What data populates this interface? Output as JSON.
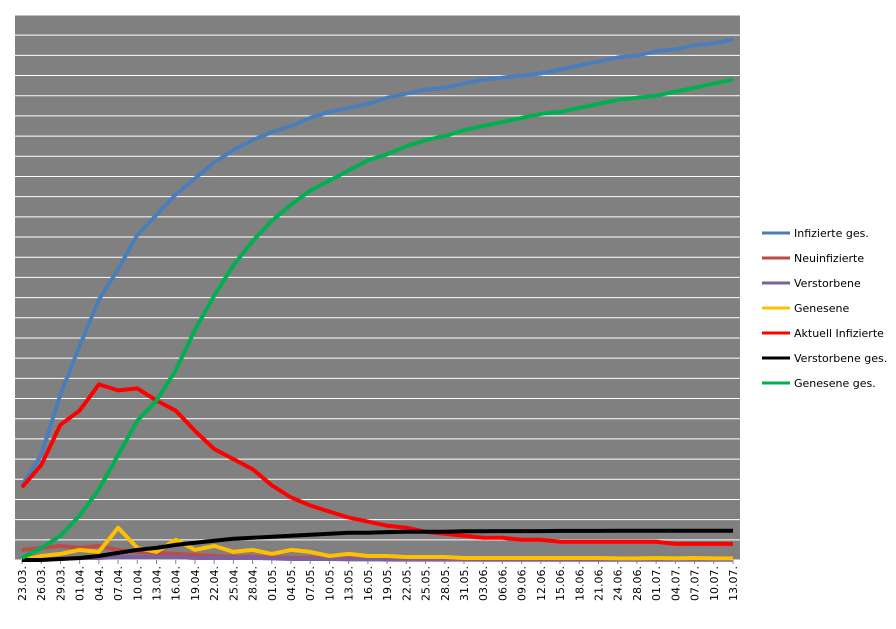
{
  "chart_data": {
    "type": "line",
    "categories": [
      "23.03.",
      "26.03.",
      "29.03.",
      "01.04.",
      "04.04.",
      "07.04.",
      "10.04.",
      "13.04.",
      "16.04.",
      "19.04.",
      "22.04.",
      "25.04.",
      "28.04.",
      "01.05.",
      "04.05.",
      "07.05.",
      "10.05.",
      "13.05.",
      "16.05.",
      "19.05.",
      "22.05.",
      "25.05.",
      "28.05.",
      "31.05.",
      "03.06.",
      "06.06.",
      "09.06.",
      "12.06.",
      "15.06.",
      "18.06.",
      "21.06.",
      "24.06.",
      "28.06.",
      "01.07.",
      "04.07.",
      "07.07.",
      "10.07.",
      "13.07."
    ],
    "series": [
      {
        "name": "Infizierte ges.",
        "color": "#4a7ebb",
        "values": [
          3.7,
          5.2,
          8.2,
          10.6,
          12.9,
          14.4,
          16.1,
          17.1,
          18.1,
          18.9,
          19.7,
          20.3,
          20.8,
          21.2,
          21.5,
          21.9,
          22.2,
          22.4,
          22.6,
          22.9,
          23.1,
          23.3,
          23.4,
          23.6,
          23.8,
          23.9,
          24.0,
          24.1,
          24.3,
          24.5,
          24.7,
          24.9,
          25.0,
          25.2,
          25.3,
          25.5,
          25.6,
          25.8
        ]
      },
      {
        "name": "Neuinfizierte",
        "color": "#be4b48",
        "values": [
          0.5,
          0.6,
          0.7,
          0.6,
          0.7,
          0.5,
          0.4,
          0.35,
          0.3,
          0.25,
          0.2,
          0.15,
          0.15,
          0.12,
          0.1,
          0.1,
          0.08,
          0.08,
          0.06,
          0.06,
          0.05,
          0.05,
          0.05,
          0.05,
          0.04,
          0.04,
          0.04,
          0.04,
          0.04,
          0.04,
          0.04,
          0.04,
          0.04,
          0.04,
          0.04,
          0.04,
          0.04,
          0.04
        ]
      },
      {
        "name": "Verstorbene",
        "color": "#7d60a0",
        "values": [
          0.0,
          0.05,
          0.05,
          0.1,
          0.1,
          0.15,
          0.15,
          0.15,
          0.15,
          0.1,
          0.1,
          0.1,
          0.1,
          0.08,
          0.05,
          0.05,
          0.05,
          0.03,
          0.03,
          0.02,
          0.02,
          0.02,
          0.02,
          0.02,
          0.01,
          0.01,
          0.01,
          0.01,
          0.01,
          0.01,
          0.01,
          0.01,
          0.01,
          0.01,
          0.01,
          0.01,
          0.01,
          0.01
        ]
      },
      {
        "name": "Genesene",
        "color": "#ffc000",
        "values": [
          0.0,
          0.2,
          0.3,
          0.5,
          0.4,
          1.6,
          0.6,
          0.4,
          1.0,
          0.5,
          0.7,
          0.4,
          0.5,
          0.3,
          0.5,
          0.4,
          0.2,
          0.3,
          0.2,
          0.2,
          0.15,
          0.15,
          0.15,
          0.1,
          0.1,
          0.1,
          0.1,
          0.1,
          0.1,
          0.1,
          0.1,
          0.08,
          0.08,
          0.1,
          0.08,
          0.1,
          0.08,
          0.08
        ]
      },
      {
        "name": "Aktuell Infizierte",
        "color": "#ff0000",
        "values": [
          3.6,
          4.7,
          6.7,
          7.4,
          8.7,
          8.4,
          8.5,
          7.9,
          7.4,
          6.4,
          5.5,
          5.0,
          4.5,
          3.7,
          3.1,
          2.7,
          2.4,
          2.1,
          1.9,
          1.7,
          1.6,
          1.4,
          1.3,
          1.2,
          1.1,
          1.1,
          1.0,
          1.0,
          0.9,
          0.9,
          0.9,
          0.9,
          0.9,
          0.9,
          0.8,
          0.8,
          0.8,
          0.8
        ]
      },
      {
        "name": "Verstorbene ges.",
        "color": "#000000",
        "values": [
          0.0,
          0.0,
          0.05,
          0.1,
          0.2,
          0.35,
          0.5,
          0.6,
          0.75,
          0.85,
          0.95,
          1.05,
          1.1,
          1.15,
          1.2,
          1.25,
          1.3,
          1.35,
          1.35,
          1.38,
          1.4,
          1.4,
          1.4,
          1.42,
          1.42,
          1.43,
          1.43,
          1.43,
          1.44,
          1.44,
          1.44,
          1.45,
          1.45,
          1.45,
          1.45,
          1.45,
          1.45,
          1.45
        ]
      },
      {
        "name": "Genesene ges.",
        "color": "#00b050",
        "values": [
          0.1,
          0.6,
          1.2,
          2.2,
          3.5,
          5.2,
          6.9,
          7.9,
          9.4,
          11.4,
          13.1,
          14.6,
          15.8,
          16.8,
          17.6,
          18.3,
          18.8,
          19.3,
          19.8,
          20.1,
          20.5,
          20.8,
          21.0,
          21.3,
          21.5,
          21.7,
          21.9,
          22.1,
          22.2,
          22.4,
          22.6,
          22.8,
          22.9,
          23.0,
          23.2,
          23.4,
          23.6,
          23.8
        ]
      }
    ],
    "ylim": [
      0,
      27
    ],
    "grid": true,
    "legend": "right"
  }
}
